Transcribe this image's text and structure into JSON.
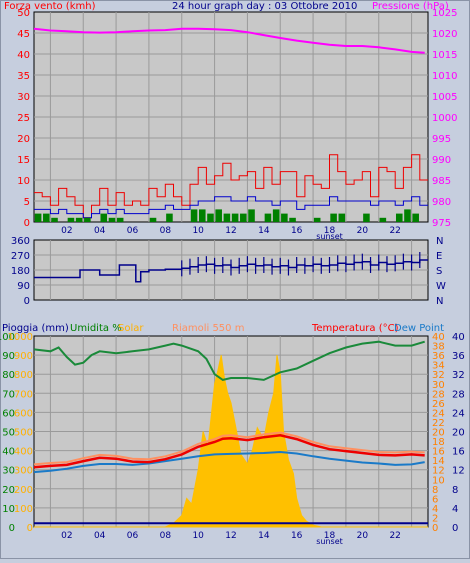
{
  "header": {
    "left_title": "Forza vento (kmh)",
    "center_title": "24 hour graph day : 03 Ottobre 2010",
    "right_title": "Pressione (hPa)"
  },
  "bottom_header": {
    "rain_label": "Pioggia (mm)",
    "humidity_label": "Umidita %",
    "solar_label": "Solar",
    "lightning_label": "Riamoli 550 m",
    "temp_label": "Temperatura (°C)",
    "dew_label": "Dew Point"
  },
  "colors": {
    "background": "#c6cede",
    "plot_bg": "#c8c8c8",
    "grid": "#9a9a9a",
    "axis_red": "#ff0000",
    "axis_magenta": "#ff00ff",
    "axis_navy": "#00008b",
    "axis_green": "#008000",
    "axis_orange": "#ff8000",
    "wind_gust": "#ee0000",
    "wind_avg": "#0000cc",
    "wind_low": "#008000",
    "pressure": "#ff00ff",
    "direction": "#00008b",
    "humidity": "#1a8a3a",
    "temperature": "#ee0000",
    "temp_light": "#ff9060",
    "dew": "#1a7ac8",
    "solar": "#ffc000"
  },
  "x_ticks": [
    "02",
    "04",
    "06",
    "08",
    "10",
    "12",
    "14",
    "16",
    "18",
    "20",
    "22"
  ],
  "sunset_label": "sunset",
  "chart_data": [
    {
      "type": "line",
      "panel": "wind_pressure",
      "x_range": [
        0,
        24
      ],
      "y_left": {
        "label": "Forza vento (kmh)",
        "ticks": [
          0,
          5,
          10,
          15,
          20,
          25,
          30,
          35,
          40,
          45,
          50
        ],
        "ylim": [
          0,
          50
        ]
      },
      "y_right": {
        "label": "Pressione (hPa)",
        "ticks": [
          975,
          980,
          985,
          990,
          995,
          1000,
          1005,
          1010,
          1015,
          1020,
          1025
        ],
        "ylim": [
          975,
          1025
        ]
      },
      "grid": true,
      "series": [
        {
          "axis": "right",
          "style": "line",
          "x": [
            0,
            1,
            2,
            3,
            4,
            5,
            6,
            7,
            8,
            9,
            10,
            11,
            12,
            13,
            14,
            15,
            16,
            17,
            18,
            19,
            20,
            21,
            22,
            23,
            23.8
          ],
          "y": [
            1021,
            1020.6,
            1020.4,
            1020.2,
            1020.1,
            1020.2,
            1020.4,
            1020.6,
            1020.7,
            1021,
            1021,
            1020.9,
            1020.7,
            1020.2,
            1019.5,
            1018.8,
            1018.2,
            1017.7,
            1017.2,
            1016.9,
            1016.9,
            1016.6,
            1016.1,
            1015.5,
            1015.3
          ]
        },
        {
          "axis": "left",
          "style": "step",
          "x": [
            0,
            0.5,
            1,
            1.5,
            2,
            2.5,
            3,
            3.5,
            4,
            4.5,
            5,
            5.5,
            6,
            6.5,
            7,
            7.5,
            8,
            8.5,
            9,
            9.5,
            10,
            10.5,
            11,
            11.5,
            12,
            12.5,
            13,
            13.5,
            14,
            14.5,
            15,
            15.5,
            16,
            16.5,
            17,
            17.5,
            18,
            18.5,
            19,
            19.5,
            20,
            20.5,
            21,
            21.5,
            22,
            22.5,
            23,
            23.5
          ],
          "y": [
            7,
            6,
            4,
            8,
            6,
            4,
            1,
            4,
            8,
            4,
            7,
            4,
            5,
            4,
            8,
            6,
            9,
            6,
            4,
            9,
            13,
            9,
            11,
            14,
            10,
            11,
            12,
            8,
            13,
            9,
            12,
            12,
            6,
            11,
            9,
            8,
            16,
            12,
            9,
            10,
            12,
            6,
            13,
            12,
            8,
            13,
            16,
            10
          ]
        },
        {
          "axis": "left",
          "style": "line",
          "x": [
            0,
            0.5,
            1,
            1.5,
            2,
            2.5,
            3,
            3.5,
            4,
            4.5,
            5,
            5.5,
            6,
            6.5,
            7,
            7.5,
            8,
            8.5,
            9,
            9.5,
            10,
            10.5,
            11,
            11.5,
            12,
            12.5,
            13,
            13.5,
            14,
            14.5,
            15,
            15.5,
            16,
            16.5,
            17,
            17.5,
            18,
            18.5,
            19,
            19.5,
            20,
            20.5,
            21,
            21.5,
            22,
            22.5,
            23,
            23.5
          ],
          "y": [
            3,
            3,
            2,
            3,
            2,
            2,
            1,
            2,
            3,
            2,
            3,
            2,
            2,
            2,
            3,
            3,
            4,
            3,
            3,
            4,
            5,
            5,
            6,
            6,
            5,
            5,
            6,
            5,
            5,
            4,
            5,
            5,
            3,
            4,
            4,
            4,
            6,
            5,
            5,
            5,
            5,
            4,
            5,
            5,
            4,
            5,
            6,
            4
          ]
        },
        {
          "axis": "left",
          "style": "bars",
          "x": [
            0.25,
            0.75,
            1.25,
            2.25,
            2.75,
            3.25,
            4.25,
            4.75,
            5.25,
            7.25,
            8.25,
            9.75,
            10.25,
            10.75,
            11.25,
            11.75,
            12.25,
            12.75,
            13.25,
            14.25,
            14.75,
            15.25,
            15.75,
            17.25,
            18.25,
            18.75,
            20.25,
            21.25,
            22.25,
            22.75,
            23.25
          ],
          "y": [
            2,
            2,
            1,
            1,
            1,
            1,
            2,
            1,
            1,
            1,
            2,
            3,
            3,
            2,
            3,
            2,
            2,
            2,
            3,
            2,
            3,
            2,
            1,
            1,
            2,
            2,
            2,
            1,
            2,
            3,
            2
          ]
        }
      ]
    },
    {
      "type": "scatter",
      "panel": "wind_direction",
      "x_range": [
        0,
        24
      ],
      "y_left": {
        "ticks": [
          0,
          90,
          180,
          270,
          360
        ],
        "ylim": [
          0,
          360
        ]
      },
      "y_right": {
        "ticks": [
          "N",
          "W",
          "S",
          "E",
          "N"
        ]
      },
      "grid": true,
      "series": [
        {
          "x": [
            0,
            1,
            2,
            2.8,
            3,
            4,
            5,
            5.2,
            6,
            6.1,
            6.2,
            6.5,
            7,
            8,
            9,
            9.5,
            10,
            10.5,
            11,
            11.5,
            12,
            12.5,
            13,
            13.5,
            14,
            14.5,
            15,
            15.5,
            16,
            16.5,
            17,
            17.5,
            18,
            18.5,
            19,
            19.5,
            20,
            20.5,
            21,
            21.5,
            22,
            22.5,
            23,
            23.5
          ],
          "y": [
            135,
            135,
            135,
            180,
            180,
            150,
            150,
            210,
            210,
            210,
            110,
            170,
            180,
            185,
            190,
            200,
            210,
            215,
            205,
            210,
            195,
            205,
            215,
            205,
            210,
            200,
            205,
            195,
            210,
            205,
            215,
            205,
            210,
            220,
            215,
            225,
            230,
            210,
            225,
            215,
            220,
            230,
            225,
            240
          ]
        }
      ]
    },
    {
      "type": "line",
      "panel": "temperature",
      "x_range": [
        0,
        24
      ],
      "y_left": {
        "label": "Pioggia (mm)",
        "ticks": [
          0,
          10,
          20,
          30,
          40,
          50,
          60,
          70,
          80,
          90,
          100
        ],
        "ylim": [
          0,
          100
        ]
      },
      "y_left_inner": {
        "label": "",
        "ticks": [
          0,
          0.1,
          0.2,
          0.3,
          0.4,
          0.5,
          0.6,
          0.7,
          0.8,
          0.9,
          1
        ],
        "ylim": [
          0,
          1
        ]
      },
      "y_solar": {
        "label": "Solar",
        "ticks": [
          0,
          100,
          200,
          300,
          400,
          500,
          600,
          700,
          800,
          900,
          1000
        ],
        "ylim": [
          0,
          1000
        ]
      },
      "y_right": {
        "label": "Temperatura (°C)",
        "ticks": [
          0,
          2,
          4,
          6,
          8,
          10,
          12,
          14,
          16,
          18,
          20,
          22,
          24,
          26,
          28,
          30,
          32,
          34,
          36,
          38,
          40
        ],
        "ylim": [
          0,
          40
        ]
      },
      "y_right2": {
        "label": "Dew Point",
        "ticks": [
          0,
          4,
          8,
          12,
          16,
          20,
          24,
          28,
          32,
          36,
          40
        ],
        "ylim": [
          0,
          40
        ]
      },
      "grid": true,
      "series": [
        {
          "axis": "left",
          "x": [
            0,
            1,
            1.5,
            2,
            2.5,
            3,
            3.5,
            4,
            5,
            6,
            7,
            8,
            8.5,
            9,
            10,
            10.5,
            11,
            11.5,
            12,
            13,
            14,
            14.5,
            15,
            16,
            17,
            18,
            19,
            20,
            21,
            22,
            23,
            23.8
          ],
          "y": [
            93,
            92,
            94,
            89,
            85,
            86,
            90,
            92,
            91,
            92,
            93,
            95,
            96,
            95,
            92,
            88,
            80,
            77,
            78,
            78,
            77,
            79,
            81,
            83,
            87,
            91,
            94,
            96,
            97,
            95,
            95,
            97
          ]
        },
        {
          "axis": "solar",
          "x": [
            0,
            8,
            8.5,
            9,
            9.3,
            9.6,
            10,
            10.3,
            10.6,
            11,
            11.2,
            11.4,
            11.6,
            11.8,
            12,
            12.3,
            12.6,
            13,
            13.3,
            13.6,
            14,
            14.3,
            14.6,
            14.8,
            15,
            15.2,
            15.5,
            15.8,
            16,
            16.3,
            16.6,
            17,
            17.5,
            24
          ],
          "y": [
            0,
            0,
            20,
            60,
            150,
            120,
            300,
            500,
            420,
            750,
            820,
            900,
            780,
            700,
            650,
            520,
            380,
            330,
            400,
            520,
            460,
            600,
            700,
            900,
            800,
            500,
            350,
            280,
            150,
            60,
            30,
            10,
            0,
            0
          ]
        },
        {
          "axis": "right",
          "x": [
            0,
            1,
            2,
            3,
            4,
            5,
            6,
            7,
            8,
            9,
            10,
            11,
            11.5,
            12,
            13,
            14,
            15,
            16,
            17,
            18,
            19,
            20,
            21,
            22,
            23,
            23.8
          ],
          "y": [
            12.5,
            12.8,
            13,
            13.8,
            14.5,
            14.3,
            13.7,
            13.6,
            14.2,
            15.2,
            16.8,
            17.8,
            18.5,
            18.6,
            18.2,
            18.8,
            19.2,
            18.4,
            17.2,
            16.3,
            15.9,
            15.5,
            15.1,
            15,
            15.2,
            15
          ]
        },
        {
          "axis": "right",
          "x": [
            0,
            1,
            2,
            3,
            4,
            5,
            6,
            7,
            8,
            9,
            10,
            11,
            12,
            13,
            14,
            15,
            16,
            17,
            18,
            19,
            20,
            21,
            22,
            23,
            23.8
          ],
          "y": [
            11.5,
            11.8,
            12.2,
            12.8,
            13.2,
            13.2,
            13,
            13.3,
            13.8,
            14.3,
            14.8,
            15.2,
            15.3,
            15.4,
            15.5,
            15.7,
            15.4,
            14.8,
            14.3,
            13.9,
            13.5,
            13.3,
            13,
            13.1,
            13.6
          ]
        },
        {
          "axis": "left_inner",
          "x": [
            0,
            24
          ],
          "y": [
            0.02,
            0.02
          ]
        }
      ]
    }
  ]
}
